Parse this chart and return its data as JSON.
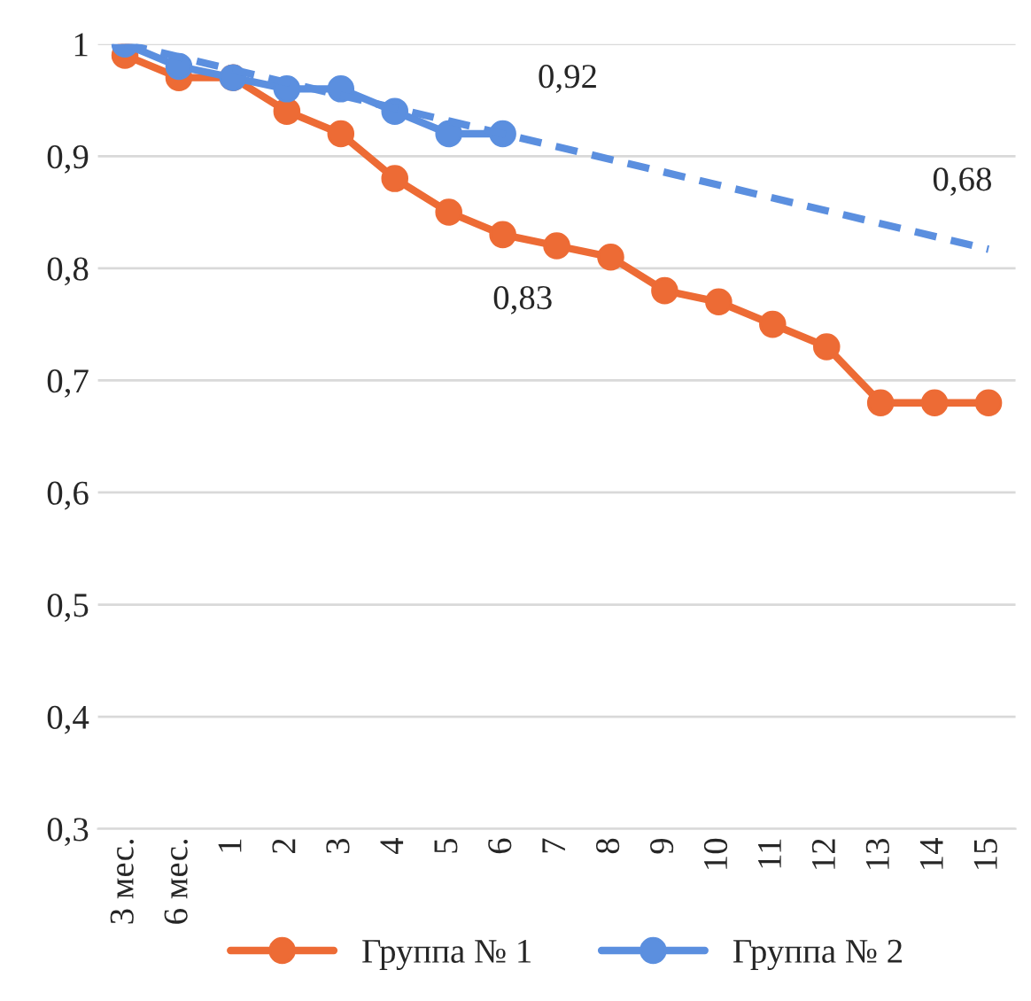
{
  "chart_data": {
    "type": "line",
    "categories": [
      "3 мес.",
      "6 мес.",
      "1",
      "2",
      "3",
      "4",
      "5",
      "6",
      "7",
      "8",
      "9",
      "10",
      "11",
      "12",
      "13",
      "14",
      "15"
    ],
    "series": [
      {
        "name": "Группа № 1",
        "color": "#ed6b35",
        "marker": "circle",
        "line_style": "solid",
        "values": [
          0.99,
          0.97,
          0.97,
          0.94,
          0.92,
          0.88,
          0.85,
          0.83,
          0.82,
          0.81,
          0.78,
          0.77,
          0.75,
          0.73,
          0.68,
          0.68,
          0.68
        ]
      },
      {
        "name": "Группа № 2",
        "color": "#5b8fdf",
        "marker": "circle",
        "line_style": "solid",
        "values": [
          1.0,
          0.98,
          0.97,
          0.96,
          0.96,
          0.94,
          0.92,
          0.92,
          null,
          null,
          null,
          null,
          null,
          null,
          null,
          null,
          null
        ]
      },
      {
        "color": "#5b8fdf",
        "marker": "none",
        "line_style": "dashed",
        "values": [
          1.0,
          null,
          null,
          null,
          null,
          null,
          null,
          null,
          null,
          null,
          null,
          null,
          null,
          null,
          null,
          null,
          0.817
        ]
      }
    ],
    "annotations": [
      "0,92",
      "0,83",
      "0,68"
    ],
    "ylim": [
      0.3,
      1.0
    ],
    "yticks": [
      {
        "value": 0.3,
        "label": "0,3"
      },
      {
        "value": 0.4,
        "label": "0,4"
      },
      {
        "value": 0.5,
        "label": "0,5"
      },
      {
        "value": 0.6,
        "label": "0,6"
      },
      {
        "value": 0.7,
        "label": "0,7"
      },
      {
        "value": 0.8,
        "label": "0,8"
      },
      {
        "value": 0.9,
        "label": "0,9"
      },
      {
        "value": 1.0,
        "label": "1"
      }
    ],
    "grid": "y",
    "legend": "bottom"
  }
}
